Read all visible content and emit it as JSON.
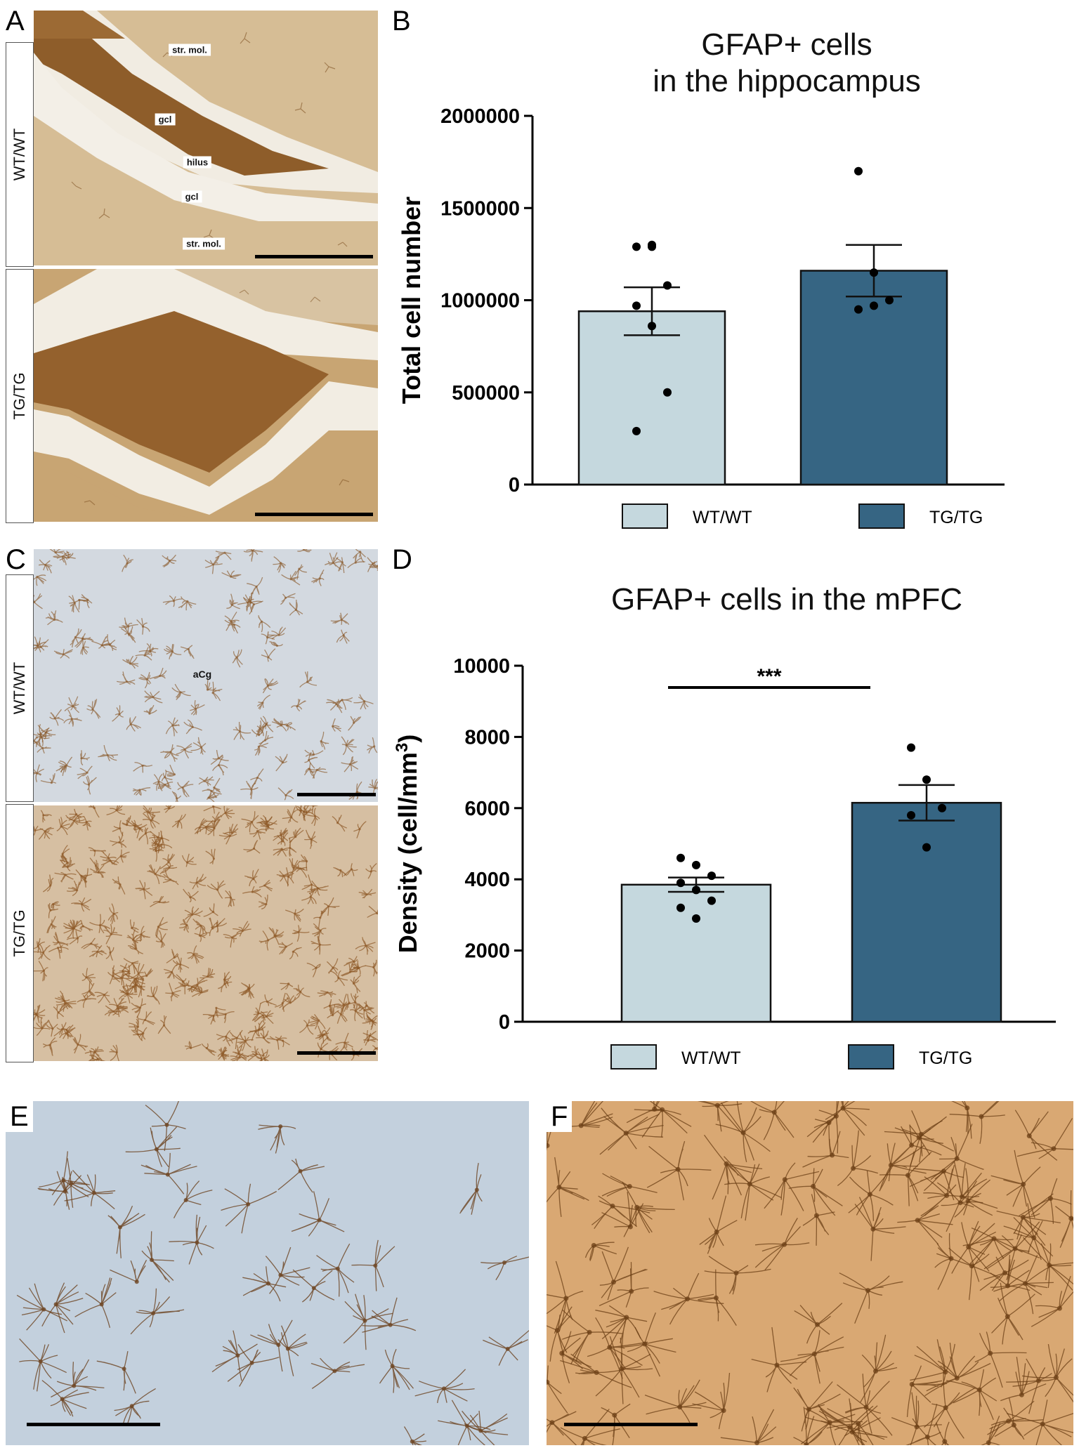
{
  "panels": {
    "A": {
      "letter": "A",
      "rows": [
        "WT/WT",
        "TG/TG"
      ],
      "annotations": [
        "str. mol.",
        "gcl",
        "hilus",
        "gcl",
        "str. mol."
      ]
    },
    "B": {
      "letter": "B"
    },
    "C": {
      "letter": "C",
      "rows": [
        "WT/WT",
        "TG/TG"
      ],
      "annotations": [
        "aCg"
      ]
    },
    "D": {
      "letter": "D"
    },
    "E": {
      "letter": "E"
    },
    "F": {
      "letter": "F"
    }
  },
  "colors": {
    "wt": "#c5d8de",
    "tg": "#366583",
    "stain_light": "#d9c3a0",
    "stain_dark": "#9c6a34",
    "stain_blue": "#c4d0dc"
  },
  "chart_data": [
    {
      "panel": "B",
      "type": "bar",
      "title": "GFAP+ cells\nin the hippocampus",
      "xlabel": "",
      "ylabel": "Total cell number",
      "ylim": [
        0,
        2000000
      ],
      "yticks": [
        "0",
        "500000",
        "1000000",
        "1500000",
        "2000000"
      ],
      "categories": [
        "WT/WT",
        "TG/TG"
      ],
      "values": [
        940000,
        1160000
      ],
      "sem": [
        130000,
        140000
      ],
      "points": [
        [
          1290000,
          1300000,
          1080000,
          970000,
          860000,
          500000,
          290000,
          1290000
        ],
        [
          1700000,
          1150000,
          1000000,
          950000,
          970000
        ]
      ],
      "legend": [
        "WT/WT",
        "TG/TG"
      ],
      "legend_position": "bottom"
    },
    {
      "panel": "D",
      "type": "bar",
      "title": "GFAP+ cells in the mPFC",
      "xlabel": "",
      "ylabel": "Density  (cell/mm",
      "ylabel_sup": "3",
      "ylabel_end": ")",
      "ylim": [
        0,
        10000
      ],
      "yticks": [
        "0",
        "2000",
        "4000",
        "6000",
        "8000",
        "10000"
      ],
      "categories": [
        "WT/WT",
        "TG/TG"
      ],
      "values": [
        3850,
        6150
      ],
      "sem": [
        200,
        500
      ],
      "points": [
        [
          4600,
          4400,
          4100,
          3900,
          3700,
          3400,
          3200,
          2900
        ],
        [
          7700,
          6800,
          6000,
          5800,
          4900
        ]
      ],
      "significance": "***",
      "legend": [
        "WT/WT",
        "TG/TG"
      ],
      "legend_position": "bottom"
    }
  ]
}
